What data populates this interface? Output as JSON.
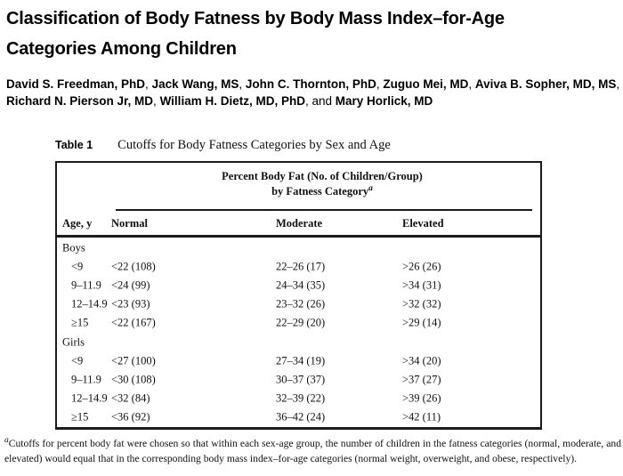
{
  "paper": {
    "title": "Classification of Body Fatness by Body Mass Index–for-Age Categories Among Children"
  },
  "authors": {
    "segments": [
      {
        "text": "David S. Freedman, PhD",
        "bold": true
      },
      {
        "text": ", ",
        "bold": false
      },
      {
        "text": "Jack Wang, MS",
        "bold": true
      },
      {
        "text": ", ",
        "bold": false
      },
      {
        "text": "John C. Thornton, PhD",
        "bold": true
      },
      {
        "text": ", ",
        "bold": false
      },
      {
        "text": "Zuguo Mei, MD",
        "bold": true
      },
      {
        "text": ", ",
        "bold": false
      },
      {
        "text": "Aviva B. Sopher, MD, MS",
        "bold": true
      },
      {
        "text": ", ",
        "bold": false
      },
      {
        "text": "Richard N. Pierson Jr, MD",
        "bold": true
      },
      {
        "text": ", ",
        "bold": false
      },
      {
        "text": "William H. Dietz, MD, PhD",
        "bold": true
      },
      {
        "text": ", and ",
        "bold": false
      },
      {
        "text": "Mary Horlick, MD",
        "bold": true
      }
    ]
  },
  "table": {
    "label": "Table 1",
    "caption": "Cutoffs for Body Fatness Categories by Sex and Age",
    "spanner_line1": "Percent Body Fat (No. of Children/Group)",
    "spanner_line2": "by Fatness Category",
    "spanner_footnote_mark": "a",
    "columns": [
      "Age, y",
      "Normal",
      "Moderate",
      "Elevated"
    ],
    "sections": [
      {
        "group": "Boys",
        "rows": [
          {
            "age": "<9",
            "normal": "<22 (108)",
            "moderate": "22–26 (17)",
            "elevated": ">26 (26)"
          },
          {
            "age": "9–11.9",
            "normal": "<24 (99)",
            "moderate": "24–34 (35)",
            "elevated": ">34 (31)"
          },
          {
            "age": "12–14.9",
            "normal": "<23 (93)",
            "moderate": "23–32 (26)",
            "elevated": ">32 (32)"
          },
          {
            "age": "≥15",
            "normal": "<22 (167)",
            "moderate": "22–29 (20)",
            "elevated": ">29 (14)"
          }
        ]
      },
      {
        "group": "Girls",
        "rows": [
          {
            "age": "<9",
            "normal": "<27 (100)",
            "moderate": "27–34 (19)",
            "elevated": ">34 (20)"
          },
          {
            "age": "9–11.9",
            "normal": "<30 (108)",
            "moderate": "30–37 (37)",
            "elevated": ">37 (27)"
          },
          {
            "age": "12–14.9",
            "normal": "<32 (84)",
            "moderate": "32–39 (22)",
            "elevated": ">39 (26)"
          },
          {
            "age": "≥15",
            "normal": "<36 (92)",
            "moderate": "36–42 (24)",
            "elevated": ">42 (11)"
          }
        ]
      }
    ]
  },
  "footnote": {
    "mark": "a",
    "text": "Cutoffs for percent body fat were chosen so that within each sex-age group, the number of children in the fatness categories (normal, moderate, and elevated) would equal that in the corresponding body mass index–for-age categories (normal weight, overweight, and obese, respectively)."
  }
}
